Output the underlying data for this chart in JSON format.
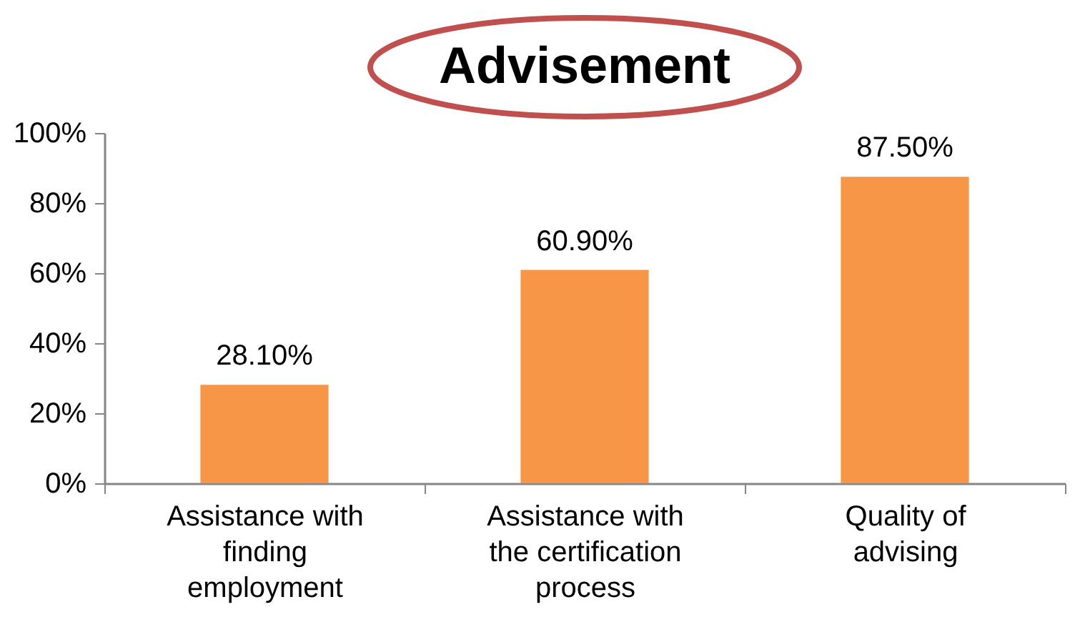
{
  "chart_data": {
    "type": "bar",
    "title": "Advisement",
    "categories": [
      "Assistance with finding employment",
      "Assistance with the certification process",
      "Quality of advising"
    ],
    "values": [
      28.1,
      60.9,
      87.5
    ],
    "color": "#f79646",
    "value_labels": [
      "28.10%",
      "60.90%",
      "87.50%"
    ],
    "ylim": [
      0,
      100
    ],
    "yticks": [
      {
        "value": 0,
        "label": "0%"
      },
      {
        "value": 20,
        "label": "20%"
      },
      {
        "value": 40,
        "label": "40%"
      },
      {
        "value": 60,
        "label": "60%"
      },
      {
        "value": 80,
        "label": "80%"
      },
      {
        "value": 100,
        "label": "100%"
      }
    ]
  }
}
